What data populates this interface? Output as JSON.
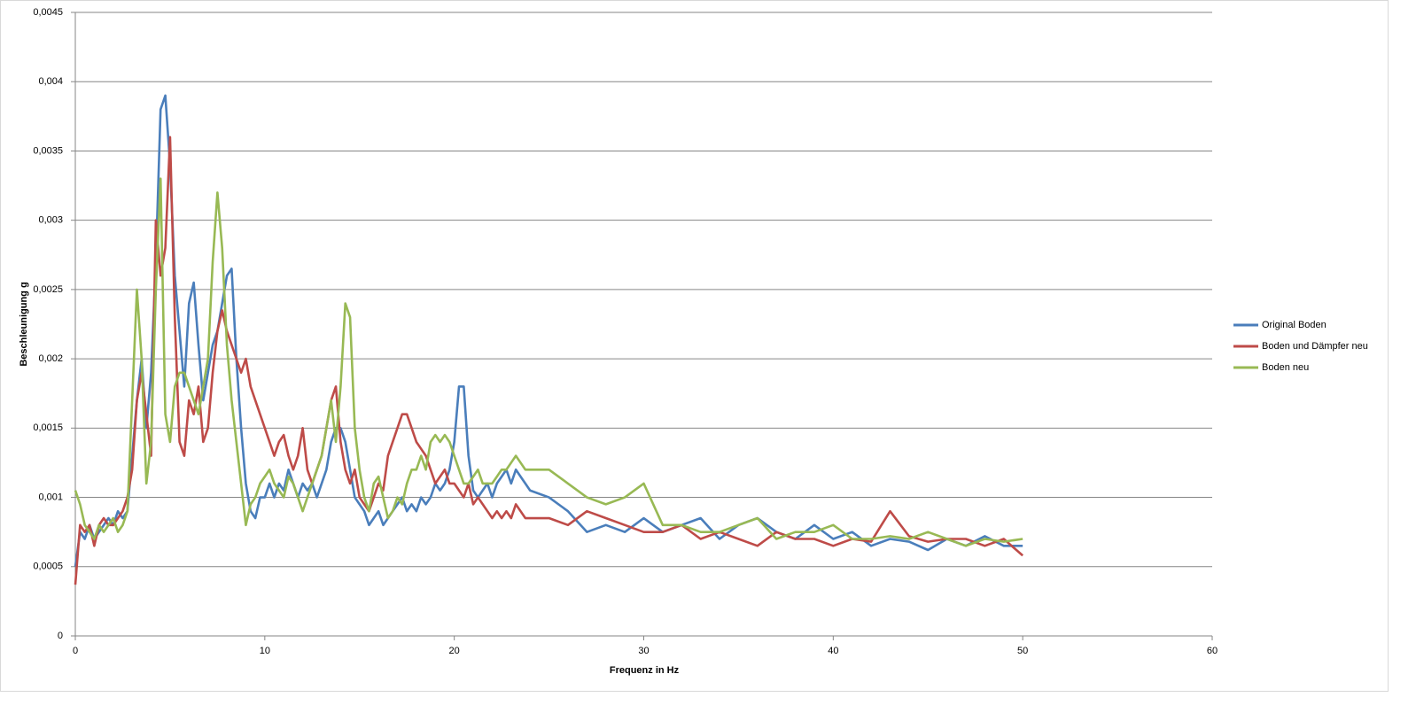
{
  "chart_data": {
    "type": "line",
    "x_label": "Frequenz in Hz",
    "y_label": "Beschleunigung g",
    "xlim": [
      0,
      60
    ],
    "xticks": [
      0,
      10,
      20,
      30,
      40,
      50,
      60
    ],
    "ylim": [
      0,
      0.0045
    ],
    "yticks": [
      0,
      {
        "value": 0.0005,
        "label": "0,0005"
      },
      {
        "value": 0.001,
        "label": "0,001"
      },
      {
        "value": 0.0015,
        "label": "0,0015"
      },
      {
        "value": 0.002,
        "label": "0,002"
      },
      {
        "value": 0.0025,
        "label": "0,0025"
      },
      {
        "value": 0.003,
        "label": "0,003"
      },
      {
        "value": 0.0035,
        "label": "0,0035"
      },
      {
        "value": 0.004,
        "label": "0,004"
      },
      {
        "value": 0.0045,
        "label": "0,0045"
      }
    ],
    "grid": true,
    "legend": "right",
    "x": [
      0,
      0.25,
      0.5,
      0.75,
      1,
      1.25,
      1.5,
      1.75,
      2,
      2.25,
      2.5,
      2.75,
      3,
      3.25,
      3.5,
      3.75,
      4,
      4.25,
      4.5,
      4.75,
      5,
      5.25,
      5.5,
      5.75,
      6,
      6.25,
      6.5,
      6.75,
      7,
      7.25,
      7.5,
      7.75,
      8,
      8.25,
      8.5,
      8.75,
      9,
      9.25,
      9.5,
      9.75,
      10,
      10.25,
      10.5,
      10.75,
      11,
      11.25,
      11.5,
      11.75,
      12,
      12.25,
      12.5,
      12.75,
      13,
      13.25,
      13.5,
      13.75,
      14,
      14.25,
      14.5,
      14.75,
      15,
      15.25,
      15.5,
      15.75,
      16,
      16.25,
      16.5,
      16.75,
      17,
      17.25,
      17.5,
      17.75,
      18,
      18.25,
      18.5,
      18.75,
      19,
      19.25,
      19.5,
      19.75,
      20,
      20.25,
      20.5,
      20.75,
      21,
      21.25,
      21.5,
      21.75,
      22,
      22.25,
      22.5,
      22.75,
      23,
      23.25,
      23.5,
      23.75,
      24,
      25,
      26,
      27,
      28,
      29,
      30,
      31,
      32,
      33,
      34,
      35,
      36,
      37,
      38,
      39,
      40,
      41,
      42,
      43,
      44,
      45,
      46,
      47,
      48,
      49,
      50
    ],
    "series": [
      {
        "name": "Original Boden",
        "color": "#4a7ebb",
        "values": [
          0.0005,
          0.00075,
          0.0007,
          0.0008,
          0.0007,
          0.00075,
          0.0008,
          0.00085,
          0.0008,
          0.0009,
          0.00085,
          0.0009,
          0.0013,
          0.0017,
          0.002,
          0.0015,
          0.0019,
          0.0027,
          0.0038,
          0.0039,
          0.0034,
          0.0026,
          0.0022,
          0.0018,
          0.0024,
          0.00255,
          0.0021,
          0.0017,
          0.0019,
          0.0021,
          0.0022,
          0.0024,
          0.0026,
          0.00265,
          0.002,
          0.0015,
          0.0011,
          0.0009,
          0.00085,
          0.001,
          0.001,
          0.0011,
          0.001,
          0.0011,
          0.00105,
          0.0012,
          0.0011,
          0.001,
          0.0011,
          0.00105,
          0.0011,
          0.001,
          0.0011,
          0.0012,
          0.0014,
          0.0015,
          0.0015,
          0.0014,
          0.0012,
          0.001,
          0.00095,
          0.0009,
          0.0008,
          0.00085,
          0.0009,
          0.0008,
          0.00085,
          0.0009,
          0.00095,
          0.001,
          0.0009,
          0.00095,
          0.0009,
          0.001,
          0.00095,
          0.001,
          0.0011,
          0.00105,
          0.0011,
          0.0012,
          0.0014,
          0.0018,
          0.0018,
          0.0013,
          0.00105,
          0.001,
          0.00105,
          0.0011,
          0.001,
          0.0011,
          0.00115,
          0.0012,
          0.0011,
          0.0012,
          0.00115,
          0.0011,
          0.00105,
          0.001,
          0.0009,
          0.00075,
          0.0008,
          0.00075,
          0.00085,
          0.00075,
          0.0008,
          0.00085,
          0.0007,
          0.0008,
          0.00085,
          0.00075,
          0.0007,
          0.0008,
          0.0007,
          0.00075,
          0.00065,
          0.0007,
          0.00068,
          0.00062,
          0.0007,
          0.00065,
          0.00072,
          0.00065,
          0.00065
        ]
      },
      {
        "name": "Boden und Dämpfer neu",
        "color": "#be4b48",
        "values": [
          0.00037,
          0.0008,
          0.00075,
          0.0008,
          0.00065,
          0.0008,
          0.00085,
          0.0008,
          0.0008,
          0.00085,
          0.0009,
          0.001,
          0.0012,
          0.0017,
          0.0019,
          0.0016,
          0.0013,
          0.003,
          0.0026,
          0.0028,
          0.0036,
          0.0023,
          0.0014,
          0.0013,
          0.0017,
          0.0016,
          0.0018,
          0.0014,
          0.0015,
          0.0019,
          0.0022,
          0.00235,
          0.0022,
          0.0021,
          0.002,
          0.0019,
          0.002,
          0.0018,
          0.0017,
          0.0016,
          0.0015,
          0.0014,
          0.0013,
          0.0014,
          0.00145,
          0.0013,
          0.0012,
          0.0013,
          0.0015,
          0.0012,
          0.0011,
          0.0012,
          0.0013,
          0.0015,
          0.0017,
          0.0018,
          0.0014,
          0.0012,
          0.0011,
          0.0012,
          0.001,
          0.00095,
          0.0009,
          0.001,
          0.0011,
          0.00105,
          0.0013,
          0.0014,
          0.0015,
          0.0016,
          0.0016,
          0.0015,
          0.0014,
          0.00135,
          0.0013,
          0.0012,
          0.0011,
          0.00115,
          0.0012,
          0.0011,
          0.0011,
          0.00105,
          0.001,
          0.0011,
          0.00095,
          0.001,
          0.00095,
          0.0009,
          0.00085,
          0.0009,
          0.00085,
          0.0009,
          0.00085,
          0.00095,
          0.0009,
          0.00085,
          0.00085,
          0.00085,
          0.0008,
          0.0009,
          0.00085,
          0.0008,
          0.00075,
          0.00075,
          0.0008,
          0.0007,
          0.00075,
          0.0007,
          0.00065,
          0.00075,
          0.0007,
          0.0007,
          0.00065,
          0.0007,
          0.00068,
          0.0009,
          0.00072,
          0.00068,
          0.0007,
          0.0007,
          0.00065,
          0.0007,
          0.00058
        ]
      },
      {
        "name": "Boden neu",
        "color": "#98b954",
        "values": [
          0.00105,
          0.00095,
          0.0008,
          0.00075,
          0.0007,
          0.0008,
          0.00075,
          0.0008,
          0.00085,
          0.00075,
          0.0008,
          0.0009,
          0.0017,
          0.0025,
          0.002,
          0.0011,
          0.0014,
          0.0025,
          0.0033,
          0.0016,
          0.0014,
          0.0018,
          0.0019,
          0.0019,
          0.0018,
          0.0017,
          0.0016,
          0.0018,
          0.002,
          0.0027,
          0.0032,
          0.0028,
          0.0021,
          0.0017,
          0.0014,
          0.0011,
          0.0008,
          0.00095,
          0.001,
          0.0011,
          0.00115,
          0.0012,
          0.0011,
          0.00105,
          0.001,
          0.00115,
          0.0011,
          0.001,
          0.0009,
          0.001,
          0.0011,
          0.0012,
          0.0013,
          0.0015,
          0.0017,
          0.0014,
          0.0018,
          0.0024,
          0.0023,
          0.0015,
          0.0012,
          0.001,
          0.0009,
          0.0011,
          0.00115,
          0.001,
          0.00085,
          0.0009,
          0.001,
          0.00095,
          0.0011,
          0.0012,
          0.0012,
          0.0013,
          0.0012,
          0.0014,
          0.00145,
          0.0014,
          0.00145,
          0.0014,
          0.0013,
          0.0012,
          0.0011,
          0.0011,
          0.00115,
          0.0012,
          0.0011,
          0.0011,
          0.0011,
          0.00115,
          0.0012,
          0.0012,
          0.00125,
          0.0013,
          0.00125,
          0.0012,
          0.0012,
          0.0012,
          0.0011,
          0.001,
          0.00095,
          0.001,
          0.0011,
          0.0008,
          0.0008,
          0.00075,
          0.00075,
          0.0008,
          0.00085,
          0.0007,
          0.00075,
          0.00075,
          0.0008,
          0.0007,
          0.0007,
          0.00072,
          0.0007,
          0.00075,
          0.0007,
          0.00065,
          0.0007,
          0.00068,
          0.0007
        ]
      }
    ]
  }
}
